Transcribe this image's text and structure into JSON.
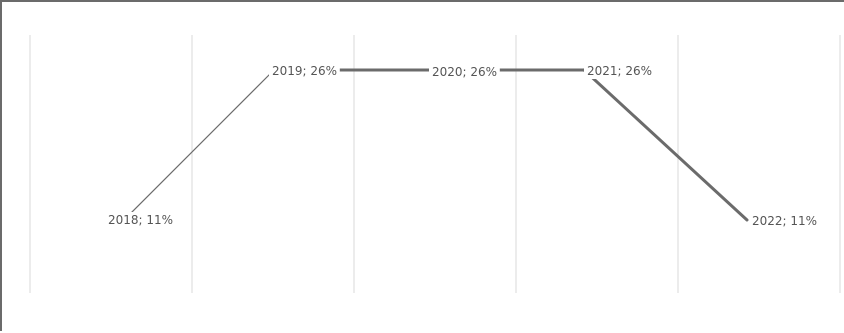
{
  "chart_data": {
    "type": "line",
    "categories": [
      "2018",
      "2019",
      "2020",
      "2021",
      "2022"
    ],
    "values": [
      11,
      26,
      26,
      26,
      11
    ],
    "data_labels": [
      "2018; 11%",
      "2019; 26%",
      "2020; 26%",
      "2021; 26%",
      "2022; 11%"
    ],
    "ylim": [
      0,
      35
    ],
    "grid": "vertical",
    "line_color": "#6b6b6b",
    "grid_color": "#d9d9d9"
  }
}
